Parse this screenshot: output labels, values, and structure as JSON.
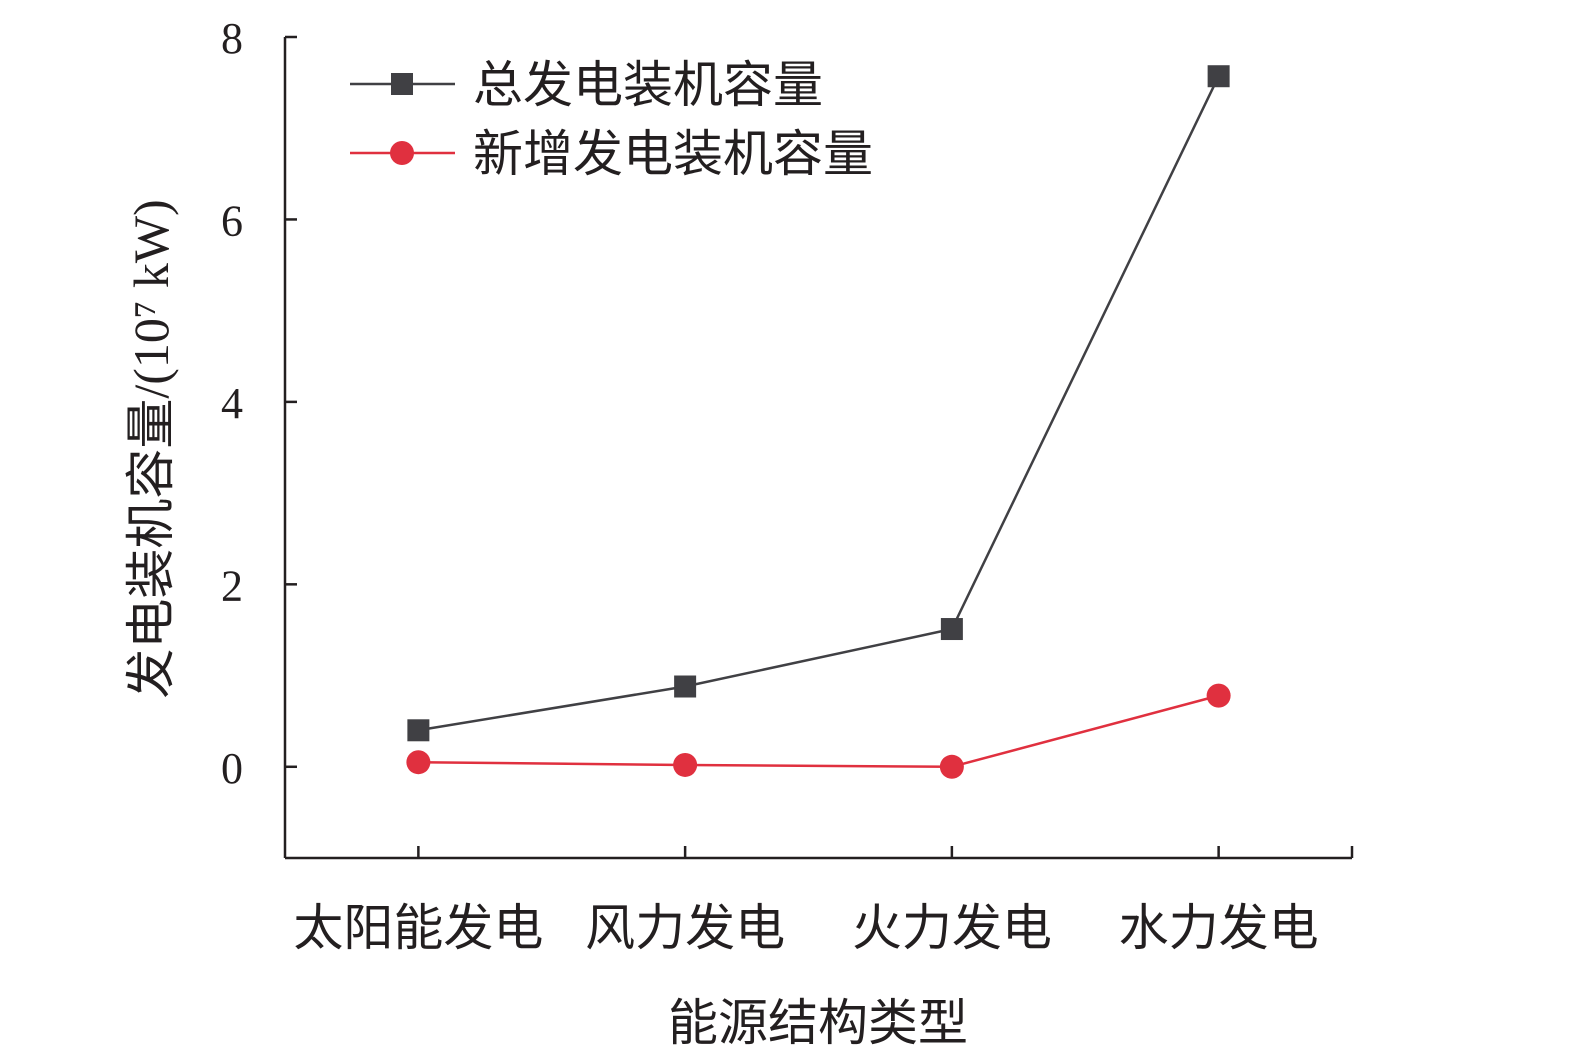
{
  "chart_data": {
    "type": "line",
    "categories": [
      "太阳能发电",
      "风力发电",
      "火力发电",
      "水力发电"
    ],
    "series": [
      {
        "name": "总发电装机容量",
        "values": [
          0.4,
          0.88,
          1.51,
          7.57
        ],
        "color": "#404044",
        "marker": "square"
      },
      {
        "name": "新增发电装机容量",
        "values": [
          0.05,
          0.02,
          0.0,
          0.78
        ],
        "color": "#e0303f",
        "marker": "circle"
      }
    ],
    "xlabel": "能源结构类型",
    "ylabel": "发电装机容量/(10⁷ kW)",
    "ylim": [
      -1,
      8
    ],
    "yticks": [
      "0",
      "2",
      "4",
      "6",
      "8"
    ],
    "ytick_values": [
      0,
      2,
      4,
      6,
      8
    ],
    "grid": false,
    "legend_position": "top-left"
  }
}
